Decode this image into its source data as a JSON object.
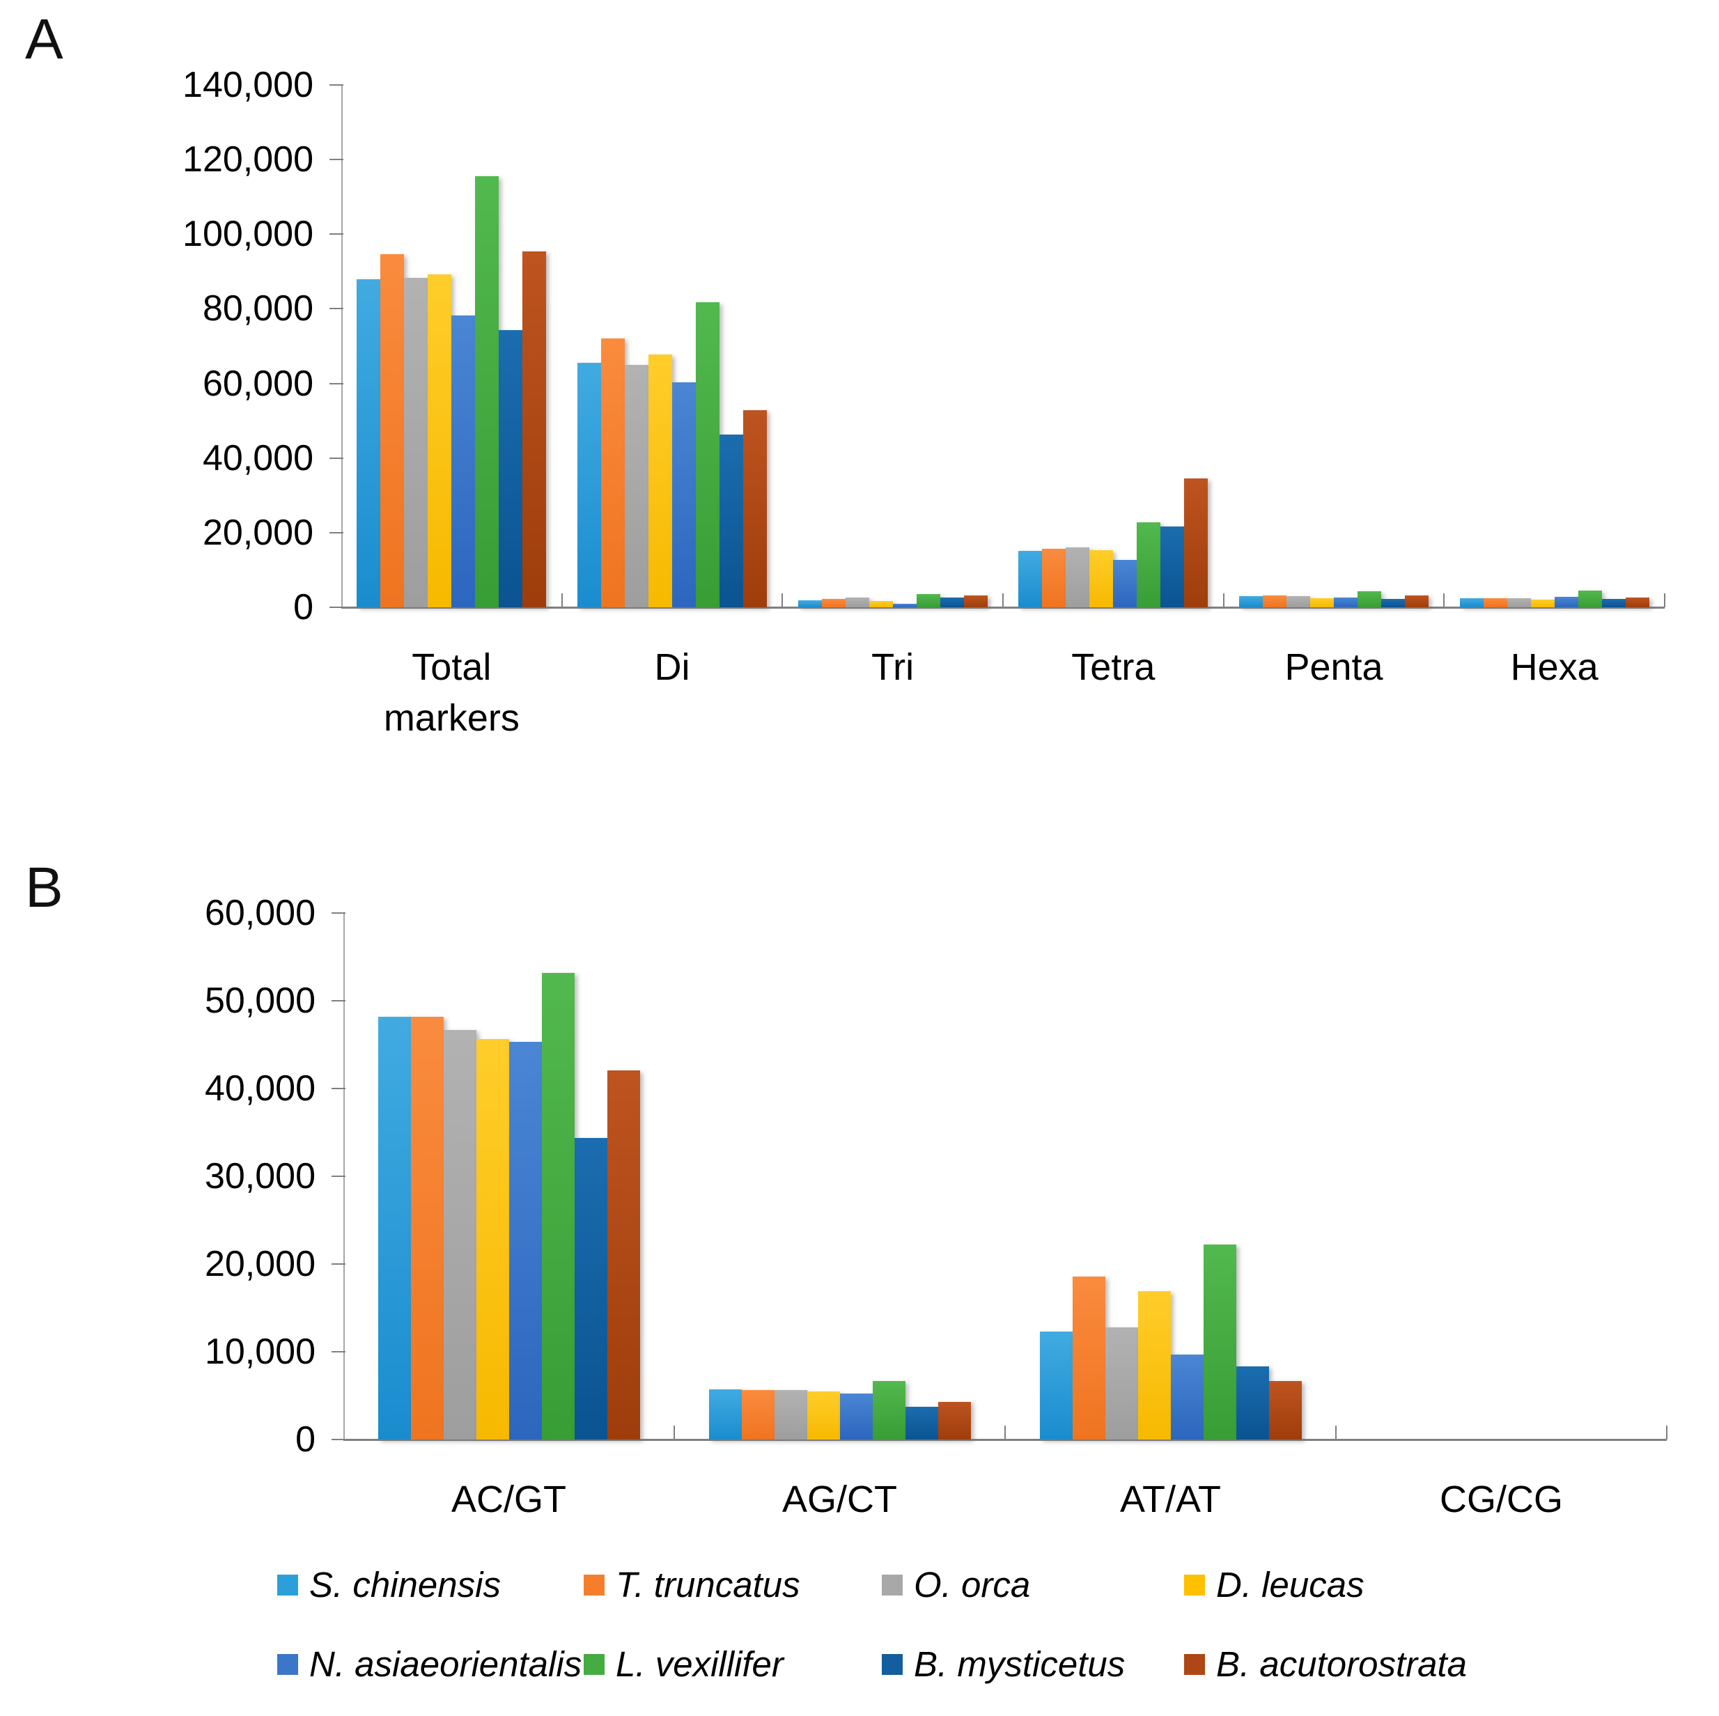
{
  "figure": {
    "panel_a_letter": "A",
    "panel_b_letter": "B"
  },
  "chart_data": [
    {
      "type": "bar",
      "panel": "A",
      "categories": [
        "Total markers",
        "Di",
        "Tri",
        "Tetra",
        "Penta",
        "Hexa"
      ],
      "category_label_lines": [
        [
          "Total",
          "markers"
        ],
        [
          "Di"
        ],
        [
          "Tri"
        ],
        [
          "Tetra"
        ],
        [
          "Penta"
        ],
        [
          "Hexa"
        ]
      ],
      "ylim": [
        0,
        140000
      ],
      "ytick_interval": 20000,
      "ytick_labels": [
        "140,000",
        "120,000",
        "100,000",
        "80,000",
        "60,000",
        "40,000",
        "20,000",
        "0"
      ],
      "grid": false,
      "legend_position": "shared-bottom",
      "series": [
        {
          "name": "S. chinensis",
          "color": "#2B9FD9",
          "gradient": [
            "#41ABE1",
            "#1A8CCE"
          ],
          "values": [
            87900,
            65600,
            1900,
            15200,
            2900,
            2400
          ]
        },
        {
          "name": "T. truncatus",
          "color": "#F57E2C",
          "gradient": [
            "#FA8B3E",
            "#EF7420"
          ],
          "values": [
            94700,
            72100,
            2300,
            15700,
            3100,
            2400
          ]
        },
        {
          "name": "O. orca",
          "color": "#A8A8A8",
          "gradient": [
            "#B2B2B2",
            "#9E9E9E"
          ],
          "values": [
            88200,
            64900,
            2700,
            16100,
            2900,
            2500
          ]
        },
        {
          "name": "D. leucas",
          "color": "#FFC000",
          "gradient": [
            "#FFCD2A",
            "#F7B900"
          ],
          "values": [
            89200,
            67700,
            1600,
            15300,
            2500,
            2100
          ]
        },
        {
          "name": "N. asiaeorientalis",
          "color": "#3B76C9",
          "gradient": [
            "#4A86D4",
            "#2C66BE"
          ],
          "values": [
            78200,
            60200,
            900,
            12600,
            2700,
            2800
          ]
        },
        {
          "name": "L. vexillifer",
          "color": "#44AC41",
          "gradient": [
            "#52B94E",
            "#389D35"
          ],
          "values": [
            115600,
            81800,
            3600,
            22700,
            4200,
            4400
          ]
        },
        {
          "name": "B. mysticetus",
          "color": "#135E9E",
          "gradient": [
            "#1B6DAF",
            "#0B5391"
          ],
          "values": [
            74200,
            46200,
            2600,
            21600,
            2300,
            2200
          ]
        },
        {
          "name": "B. acutorostrata",
          "color": "#AE4715",
          "gradient": [
            "#BE5420",
            "#9E3D0B"
          ],
          "values": [
            95400,
            52800,
            3100,
            34600,
            3100,
            2600
          ]
        }
      ]
    },
    {
      "type": "bar",
      "panel": "B",
      "categories": [
        "AC/GT",
        "AG/CT",
        "AT/AT",
        "CG/CG"
      ],
      "category_label_lines": [
        [
          "AC/GT"
        ],
        [
          "AG/CT"
        ],
        [
          "AT/AT"
        ],
        [
          "CG/CG"
        ]
      ],
      "ylim": [
        0,
        60000
      ],
      "ytick_interval": 10000,
      "ytick_labels": [
        "60,000",
        "50,000",
        "40,000",
        "30,000",
        "20,000",
        "10,000",
        "0"
      ],
      "grid": false,
      "legend_position": "shared-bottom",
      "series": [
        {
          "name": "S. chinensis",
          "color": "#2B9FD9",
          "gradient": [
            "#41ABE1",
            "#1A8CCE"
          ],
          "values": [
            48200,
            5700,
            12300,
            0
          ]
        },
        {
          "name": "T. truncatus",
          "color": "#F57E2C",
          "gradient": [
            "#FA8B3E",
            "#EF7420"
          ],
          "values": [
            48200,
            5600,
            18600,
            0
          ]
        },
        {
          "name": "O. orca",
          "color": "#A8A8A8",
          "gradient": [
            "#B2B2B2",
            "#9E9E9E"
          ],
          "values": [
            46700,
            5600,
            12800,
            0
          ]
        },
        {
          "name": "D. leucas",
          "color": "#FFC000",
          "gradient": [
            "#FFCD2A",
            "#F7B900"
          ],
          "values": [
            45600,
            5500,
            16900,
            0
          ]
        },
        {
          "name": "N. asiaeorientalis",
          "color": "#3B76C9",
          "gradient": [
            "#4A86D4",
            "#2C66BE"
          ],
          "values": [
            45300,
            5200,
            9700,
            0
          ]
        },
        {
          "name": "L. vexillifer",
          "color": "#44AC41",
          "gradient": [
            "#52B94E",
            "#389D35"
          ],
          "values": [
            53200,
            6700,
            22200,
            0
          ]
        },
        {
          "name": "B. mysticetus",
          "color": "#135E9E",
          "gradient": [
            "#1B6DAF",
            "#0B5391"
          ],
          "values": [
            34400,
            3700,
            8300,
            0
          ]
        },
        {
          "name": "B. acutorostrata",
          "color": "#AE4715",
          "gradient": [
            "#BE5420",
            "#9E3D0B"
          ],
          "values": [
            42100,
            4300,
            6700,
            0
          ]
        }
      ]
    }
  ],
  "legend": {
    "rows": [
      [
        {
          "label": "S. chinensis",
          "color": "#2B9FD9"
        },
        {
          "label": "T. truncatus",
          "color": "#F57E2C"
        },
        {
          "label": "O. orca",
          "color": "#A8A8A8"
        },
        {
          "label": "D. leucas",
          "color": "#FFC000"
        }
      ],
      [
        {
          "label": "N. asiaeorientalis",
          "color": "#3B76C9"
        },
        {
          "label": "L. vexillifer",
          "color": "#44AC41"
        },
        {
          "label": "B. mysticetus",
          "color": "#135E9E"
        },
        {
          "label": "B. acutorostrata",
          "color": "#AE4715"
        }
      ]
    ]
  }
}
